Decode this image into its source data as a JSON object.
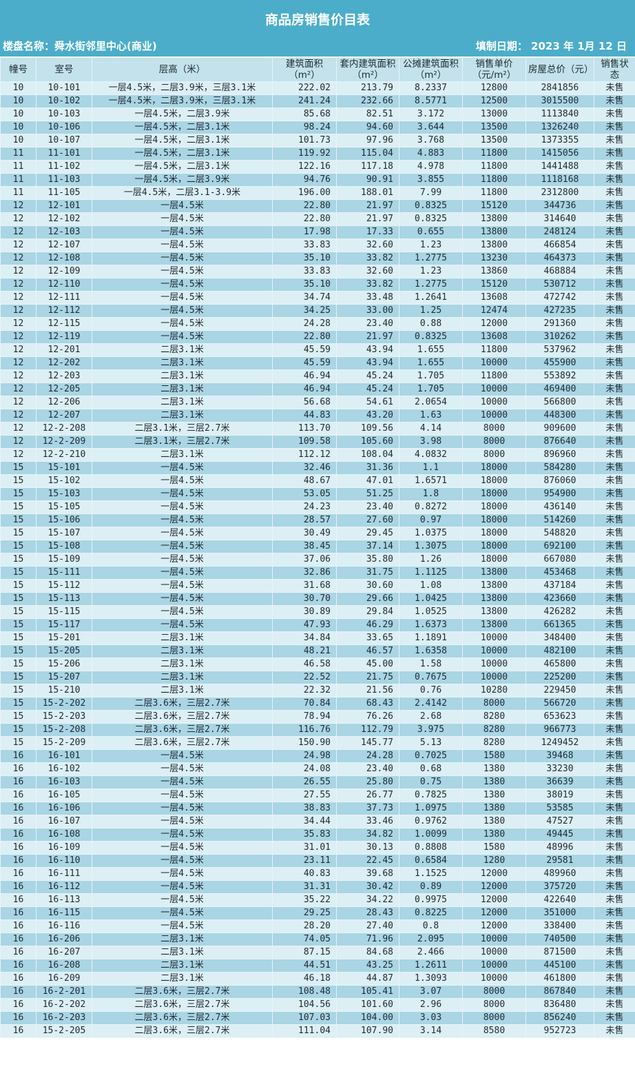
{
  "title": "商品房销售价目表",
  "project_label": "楼盘名称：舜水街邻里中心(商业)",
  "date_label": "填制日期： 2023 年 1月 12 日",
  "colors": {
    "band": "#4badc9",
    "header": "#c3e2ec",
    "row_light": "#dceff5",
    "row_dark": "#a9d5e4"
  },
  "columns": [
    "幢号",
    "室号",
    "层高（米）",
    "建筑面积（m²）",
    "套内建筑面积（m²）",
    "公摊建筑面积（m²）",
    "销售单价（元/m²）",
    "房屋总价（元）",
    "销售状态"
  ],
  "rows": [
    [
      "10",
      "10-101",
      "一层4.5米，二层3.9米，三层3.1米",
      "222.02",
      "213.79",
      "8.2337",
      "12800",
      "2841856",
      "未售"
    ],
    [
      "10",
      "10-102",
      "一层4.5米，二层3.9米，三层3.1米",
      "241.24",
      "232.66",
      "8.5771",
      "12500",
      "3015500",
      "未售"
    ],
    [
      "10",
      "10-103",
      "一层4.5米，二层3.9米",
      "85.68",
      "82.51",
      "3.172",
      "13000",
      "1113840",
      "未售"
    ],
    [
      "10",
      "10-106",
      "一层4.5米，二层3.1米",
      "98.24",
      "94.60",
      "3.644",
      "13500",
      "1326240",
      "未售"
    ],
    [
      "10",
      "10-107",
      "一层4.5米，二层3.1米",
      "101.73",
      "97.96",
      "3.768",
      "13500",
      "1373355",
      "未售"
    ],
    [
      "11",
      "11-101",
      "一层4.5米，二层3.1米",
      "119.92",
      "115.04",
      "4.883",
      "11800",
      "1415056",
      "未售"
    ],
    [
      "11",
      "11-102",
      "一层4.5米，二层3.1米",
      "122.16",
      "117.18",
      "4.978",
      "11800",
      "1441488",
      "未售"
    ],
    [
      "11",
      "11-103",
      "一层4.5米，二层3.9米",
      "94.76",
      "90.91",
      "3.855",
      "11800",
      "1118168",
      "未售"
    ],
    [
      "11",
      "11-105",
      "一层4.5米，二层3.1-3.9米",
      "196.00",
      "188.01",
      "7.99",
      "11800",
      "2312800",
      "未售"
    ],
    [
      "12",
      "12-101",
      "一层4.5米",
      "22.80",
      "21.97",
      "0.8325",
      "15120",
      "344736",
      "未售"
    ],
    [
      "12",
      "12-102",
      "一层4.5米",
      "22.80",
      "21.97",
      "0.8325",
      "13800",
      "314640",
      "未售"
    ],
    [
      "12",
      "12-103",
      "一层4.5米",
      "17.98",
      "17.33",
      "0.655",
      "13800",
      "248124",
      "未售"
    ],
    [
      "12",
      "12-107",
      "一层4.5米",
      "33.83",
      "32.60",
      "1.23",
      "13800",
      "466854",
      "未售"
    ],
    [
      "12",
      "12-108",
      "一层4.5米",
      "35.10",
      "33.82",
      "1.2775",
      "13230",
      "464373",
      "未售"
    ],
    [
      "12",
      "12-109",
      "一层4.5米",
      "33.83",
      "32.60",
      "1.23",
      "13860",
      "468884",
      "未售"
    ],
    [
      "12",
      "12-110",
      "一层4.5米",
      "35.10",
      "33.82",
      "1.2775",
      "15120",
      "530712",
      "未售"
    ],
    [
      "12",
      "12-111",
      "一层4.5米",
      "34.74",
      "33.48",
      "1.2641",
      "13608",
      "472742",
      "未售"
    ],
    [
      "12",
      "12-112",
      "一层4.5米",
      "34.25",
      "33.00",
      "1.25",
      "12474",
      "427235",
      "未售"
    ],
    [
      "12",
      "12-115",
      "一层4.5米",
      "24.28",
      "23.40",
      "0.88",
      "12000",
      "291360",
      "未售"
    ],
    [
      "12",
      "12-119",
      "一层4.5米",
      "22.80",
      "21.97",
      "0.8325",
      "13608",
      "310262",
      "未售"
    ],
    [
      "12",
      "12-201",
      "二层3.1米",
      "45.59",
      "43.94",
      "1.655",
      "11800",
      "537962",
      "未售"
    ],
    [
      "12",
      "12-202",
      "二层3.1米",
      "45.59",
      "43.94",
      "1.655",
      "10000",
      "455900",
      "未售"
    ],
    [
      "12",
      "12-203",
      "二层3.1米",
      "46.94",
      "45.24",
      "1.705",
      "11800",
      "553892",
      "未售"
    ],
    [
      "12",
      "12-205",
      "二层3.1米",
      "46.94",
      "45.24",
      "1.705",
      "10000",
      "469400",
      "未售"
    ],
    [
      "12",
      "12-206",
      "二层3.1米",
      "56.68",
      "54.61",
      "2.0654",
      "10000",
      "566800",
      "未售"
    ],
    [
      "12",
      "12-207",
      "二层3.1米",
      "44.83",
      "43.20",
      "1.63",
      "10000",
      "448300",
      "未售"
    ],
    [
      "12",
      "12-2-208",
      "二层3.1米，三层2.7米",
      "113.70",
      "109.56",
      "4.14",
      "8000",
      "909600",
      "未售"
    ],
    [
      "12",
      "12-2-209",
      "二层3.1米，三层2.7米",
      "109.58",
      "105.60",
      "3.98",
      "8000",
      "876640",
      "未售"
    ],
    [
      "12",
      "12-2-210",
      "二层3.1米",
      "112.12",
      "108.04",
      "4.0832",
      "8000",
      "896960",
      "未售"
    ],
    [
      "15",
      "15-101",
      "一层4.5米",
      "32.46",
      "31.36",
      "1.1",
      "18000",
      "584280",
      "未售"
    ],
    [
      "15",
      "15-102",
      "一层4.5米",
      "48.67",
      "47.01",
      "1.6571",
      "18000",
      "876060",
      "未售"
    ],
    [
      "15",
      "15-103",
      "一层4.5米",
      "53.05",
      "51.25",
      "1.8",
      "18000",
      "954900",
      "未售"
    ],
    [
      "15",
      "15-105",
      "一层4.5米",
      "24.23",
      "23.40",
      "0.8272",
      "18000",
      "436140",
      "未售"
    ],
    [
      "15",
      "15-106",
      "一层4.5米",
      "28.57",
      "27.60",
      "0.97",
      "18000",
      "514260",
      "未售"
    ],
    [
      "15",
      "15-107",
      "一层4.5米",
      "30.49",
      "29.45",
      "1.0375",
      "18000",
      "548820",
      "未售"
    ],
    [
      "15",
      "15-108",
      "一层4.5米",
      "38.45",
      "37.14",
      "1.3075",
      "18000",
      "692100",
      "未售"
    ],
    [
      "15",
      "15-109",
      "一层4.5米",
      "37.06",
      "35.80",
      "1.26",
      "18000",
      "667080",
      "未售"
    ],
    [
      "15",
      "15-111",
      "一层4.5米",
      "32.86",
      "31.75",
      "1.1125",
      "13800",
      "453468",
      "未售"
    ],
    [
      "15",
      "15-112",
      "一层4.5米",
      "31.68",
      "30.60",
      "1.08",
      "13800",
      "437184",
      "未售"
    ],
    [
      "15",
      "15-113",
      "一层4.5米",
      "30.70",
      "29.66",
      "1.0425",
      "13800",
      "423660",
      "未售"
    ],
    [
      "15",
      "15-115",
      "一层4.5米",
      "30.89",
      "29.84",
      "1.0525",
      "13800",
      "426282",
      "未售"
    ],
    [
      "15",
      "15-117",
      "一层4.5米",
      "47.93",
      "46.29",
      "1.6373",
      "13800",
      "661365",
      "未售"
    ],
    [
      "15",
      "15-201",
      "二层3.1米",
      "34.84",
      "33.65",
      "1.1891",
      "10000",
      "348400",
      "未售"
    ],
    [
      "15",
      "15-205",
      "二层3.1米",
      "48.21",
      "46.57",
      "1.6358",
      "10000",
      "482100",
      "未售"
    ],
    [
      "15",
      "15-206",
      "二层3.1米",
      "46.58",
      "45.00",
      "1.58",
      "10000",
      "465800",
      "未售"
    ],
    [
      "15",
      "15-207",
      "二层3.1米",
      "22.52",
      "21.75",
      "0.7675",
      "10000",
      "225200",
      "未售"
    ],
    [
      "15",
      "15-210",
      "二层3.1米",
      "22.32",
      "21.56",
      "0.76",
      "10280",
      "229450",
      "未售"
    ],
    [
      "15",
      "15-2-202",
      "二层3.6米，三层2.7米",
      "70.84",
      "68.43",
      "2.4142",
      "8000",
      "566720",
      "未售"
    ],
    [
      "15",
      "15-2-203",
      "二层3.6米，三层2.7米",
      "78.94",
      "76.26",
      "2.68",
      "8280",
      "653623",
      "未售"
    ],
    [
      "15",
      "15-2-208",
      "二层3.6米，三层2.7米",
      "116.76",
      "112.79",
      "3.975",
      "8280",
      "966773",
      "未售"
    ],
    [
      "15",
      "15-2-209",
      "二层3.6米，三层2.7米",
      "150.90",
      "145.77",
      "5.13",
      "8280",
      "1249452",
      "未售"
    ],
    [
      "16",
      "16-101",
      "一层4.5米",
      "24.98",
      "24.28",
      "0.7025",
      "1580",
      "39468",
      "未售"
    ],
    [
      "16",
      "16-102",
      "一层4.5米",
      "24.08",
      "23.40",
      "0.68",
      "1380",
      "33230",
      "未售"
    ],
    [
      "16",
      "16-103",
      "一层4.5米",
      "26.55",
      "25.80",
      "0.75",
      "1380",
      "36639",
      "未售"
    ],
    [
      "16",
      "16-105",
      "一层4.5米",
      "27.55",
      "26.77",
      "0.7825",
      "1380",
      "38019",
      "未售"
    ],
    [
      "16",
      "16-106",
      "一层4.5米",
      "38.83",
      "37.73",
      "1.0975",
      "1380",
      "53585",
      "未售"
    ],
    [
      "16",
      "16-107",
      "一层4.5米",
      "34.44",
      "33.46",
      "0.9762",
      "1380",
      "47527",
      "未售"
    ],
    [
      "16",
      "16-108",
      "一层4.5米",
      "35.83",
      "34.82",
      "1.0099",
      "1380",
      "49445",
      "未售"
    ],
    [
      "16",
      "16-109",
      "一层4.5米",
      "31.01",
      "30.13",
      "0.8808",
      "1580",
      "48996",
      "未售"
    ],
    [
      "16",
      "16-110",
      "一层4.5米",
      "23.11",
      "22.45",
      "0.6584",
      "1280",
      "29581",
      "未售"
    ],
    [
      "16",
      "16-111",
      "一层4.5米",
      "40.83",
      "39.68",
      "1.1525",
      "12000",
      "489960",
      "未售"
    ],
    [
      "16",
      "16-112",
      "一层4.5米",
      "31.31",
      "30.42",
      "0.89",
      "12000",
      "375720",
      "未售"
    ],
    [
      "16",
      "16-113",
      "一层4.5米",
      "35.22",
      "34.22",
      "0.9975",
      "12000",
      "422640",
      "未售"
    ],
    [
      "16",
      "16-115",
      "一层4.5米",
      "29.25",
      "28.43",
      "0.8225",
      "12000",
      "351000",
      "未售"
    ],
    [
      "16",
      "16-116",
      "一层4.5米",
      "28.20",
      "27.40",
      "0.8",
      "12000",
      "338400",
      "未售"
    ],
    [
      "16",
      "16-206",
      "二层3.1米",
      "74.05",
      "71.96",
      "2.095",
      "10000",
      "740500",
      "未售"
    ],
    [
      "16",
      "16-207",
      "二层3.1米",
      "87.15",
      "84.68",
      "2.466",
      "10000",
      "871500",
      "未售"
    ],
    [
      "16",
      "16-208",
      "二层3.1米",
      "44.51",
      "43.25",
      "1.2611",
      "10000",
      "445100",
      "未售"
    ],
    [
      "16",
      "16-209",
      "二层3.1米",
      "46.18",
      "44.87",
      "1.3093",
      "10000",
      "461800",
      "未售"
    ],
    [
      "16",
      "16-2-201",
      "二层3.6米，三层2.7米",
      "108.48",
      "105.41",
      "3.07",
      "8000",
      "867840",
      "未售"
    ],
    [
      "16",
      "16-2-202",
      "二层3.6米，三层2.7米",
      "104.56",
      "101.60",
      "2.96",
      "8000",
      "836480",
      "未售"
    ],
    [
      "16",
      "16-2-203",
      "二层3.6米，三层2.7米",
      "107.03",
      "104.00",
      "3.03",
      "8000",
      "856240",
      "未售"
    ],
    [
      "16",
      "15-2-205",
      "二层3.6米，三层2.7米",
      "111.04",
      "107.90",
      "3.14",
      "8580",
      "952723",
      "未售"
    ]
  ]
}
